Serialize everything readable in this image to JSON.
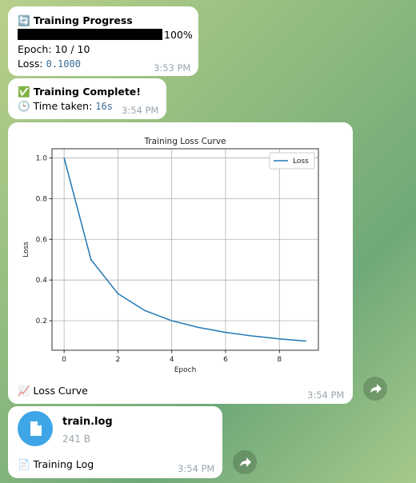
{
  "messages": [
    {
      "title": "🔄 Training Progress",
      "percent": "100%",
      "epoch": "Epoch: 10 / 10",
      "loss_label": "Loss: ",
      "loss_value": "0.1000",
      "time": "3:53 PM"
    },
    {
      "title": "✅ Training Complete!",
      "taken_label": "🕒 Time taken: ",
      "taken_value": "16s",
      "time": "3:54 PM"
    },
    {
      "caption": "📈 Loss Curve",
      "time": "3:54 PM"
    },
    {
      "file_name": "train.log",
      "file_size": "241 B",
      "caption": "📄 Training Log",
      "time": "3:54 PM"
    }
  ],
  "chart_data": {
    "type": "line",
    "title": "Training Loss Curve",
    "xlabel": "Epoch",
    "ylabel": "Loss",
    "x": [
      0,
      1,
      2,
      3,
      4,
      5,
      6,
      7,
      8,
      9
    ],
    "series": [
      {
        "name": "Loss",
        "color": "#1f77b4",
        "values": [
          1.0,
          0.5,
          0.333,
          0.25,
          0.2,
          0.167,
          0.143,
          0.125,
          0.111,
          0.1
        ]
      }
    ],
    "xlim": [
      -0.45,
      9.45
    ],
    "ylim": [
      0.055,
      1.045
    ],
    "xticks": [
      0,
      2,
      4,
      6,
      8
    ],
    "yticks": [
      0.2,
      0.4,
      0.6,
      0.8,
      {
        "value": 1,
        "label": "1.0"
      }
    ],
    "grid": true,
    "legend": "upper right"
  }
}
